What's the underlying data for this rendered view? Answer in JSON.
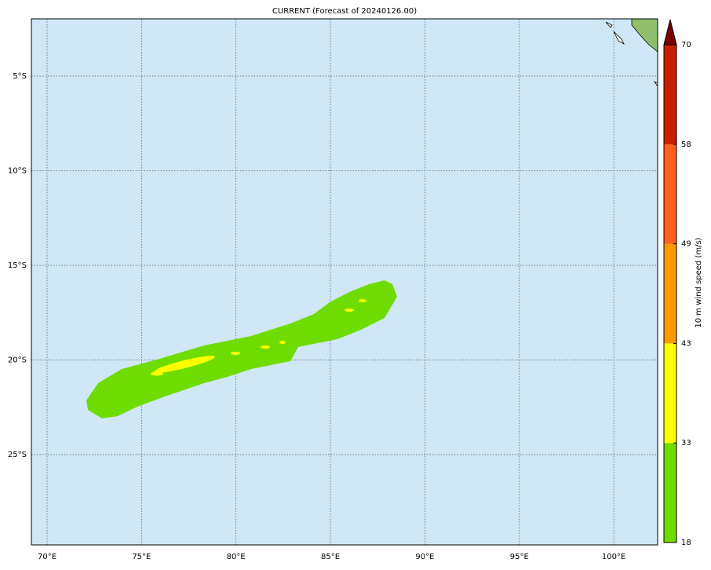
{
  "title": "CURRENT (Forecast of 20240126.00)",
  "map": {
    "lat_labels": [
      "5°S",
      "10°S",
      "15°S",
      "20°S",
      "25°S"
    ],
    "lon_labels": [
      "70°E",
      "75°E",
      "80°E",
      "85°E",
      "90°E",
      "95°E",
      "100°E"
    ]
  },
  "colorbar": {
    "label": "10 m wind speed (m/s)",
    "ticks": [
      18,
      33,
      43,
      49,
      58,
      70
    ],
    "colors": [
      "#6fdc00",
      "#ffff00",
      "#ff9900",
      "#ff6020",
      "#c82000"
    ],
    "extend_color": "#7a0000"
  }
}
